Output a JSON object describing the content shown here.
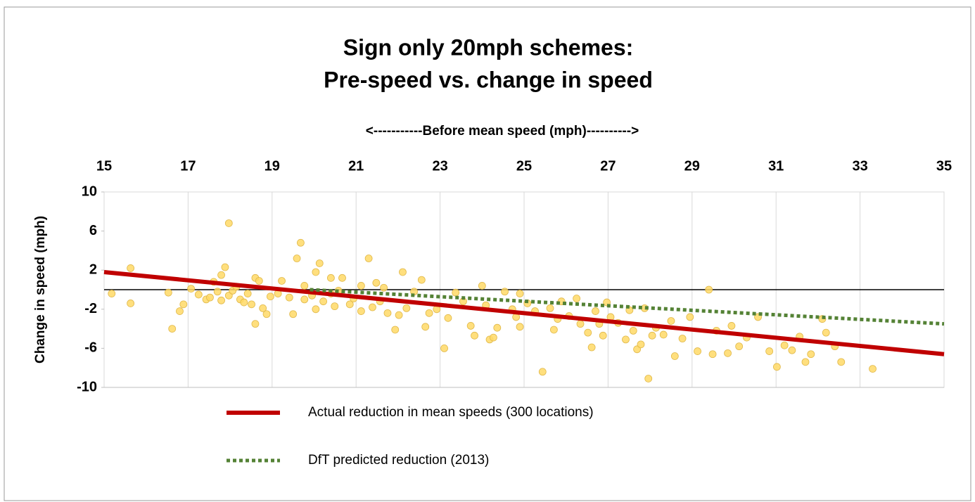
{
  "chart_data": {
    "type": "scatter",
    "title": [
      "Sign only 20mph schemes:",
      "Pre-speed vs. change in speed"
    ],
    "x_label": "<-----------Before mean speed (mph)---------->",
    "y_label": "Change in speed (mph)",
    "xlim": [
      15,
      35
    ],
    "xticks": [
      15,
      17,
      19,
      21,
      23,
      25,
      27,
      29,
      31,
      33,
      35
    ],
    "ylim": [
      -10,
      10
    ],
    "yticks": [
      10,
      6,
      2,
      -2,
      -6,
      -10
    ],
    "grid": true,
    "hline": 0,
    "legend": "bottom",
    "points": {
      "color": "#ffd966",
      "x": [
        15.18,
        15.63,
        15.63,
        16.53,
        16.62,
        16.8,
        16.89,
        17.07,
        17.25,
        17.43,
        17.52,
        17.61,
        17.7,
        17.79,
        17.79,
        17.88,
        17.97,
        17.97,
        18.06,
        18.15,
        18.24,
        18.33,
        18.42,
        18.51,
        18.6,
        18.6,
        18.69,
        18.78,
        18.87,
        18.96,
        19.14,
        19.23,
        19.41,
        19.5,
        19.59,
        19.68,
        19.77,
        19.77,
        19.95,
        20.04,
        20.04,
        20.13,
        20.22,
        20.4,
        20.4,
        20.49,
        20.58,
        20.67,
        20.85,
        20.94,
        21.12,
        21.12,
        21.3,
        21.39,
        21.48,
        21.57,
        21.66,
        21.75,
        21.93,
        22.02,
        22.11,
        22.2,
        22.38,
        22.56,
        22.65,
        22.74,
        22.92,
        23.1,
        23.19,
        23.37,
        23.55,
        23.73,
        23.82,
        24.0,
        24.09,
        24.18,
        24.27,
        24.36,
        24.54,
        24.72,
        24.81,
        24.9,
        24.9,
        25.08,
        25.26,
        25.44,
        25.62,
        25.71,
        25.8,
        25.89,
        26.07,
        26.25,
        26.34,
        26.52,
        26.61,
        26.7,
        26.79,
        26.88,
        26.97,
        27.06,
        27.24,
        27.42,
        27.51,
        27.6,
        27.69,
        27.78,
        27.87,
        27.96,
        28.05,
        28.14,
        28.32,
        28.5,
        28.59,
        28.77,
        28.95,
        29.13,
        29.4,
        29.49,
        29.58,
        29.85,
        29.94,
        30.12,
        30.3,
        30.57,
        30.84,
        31.02,
        31.2,
        31.38,
        31.56,
        31.83,
        32.1,
        32.19,
        32.55,
        33.3,
        32.4,
        31.7
      ],
      "values": [
        -0.4,
        2.2,
        -1.4,
        -0.3,
        -4.0,
        -2.2,
        -1.5,
        0.1,
        -0.5,
        -1.0,
        -0.8,
        0.8,
        -0.2,
        1.5,
        -1.1,
        2.3,
        -0.6,
        6.8,
        -0.1,
        0.3,
        -1.0,
        -1.3,
        -0.4,
        -1.5,
        1.2,
        -3.5,
        0.9,
        -1.9,
        -2.5,
        -0.7,
        -0.4,
        0.9,
        -0.8,
        -2.5,
        3.2,
        4.8,
        -1.0,
        0.4,
        -0.6,
        1.8,
        -2.0,
        2.7,
        -1.2,
        -0.4,
        1.2,
        -1.7,
        -0.1,
        1.2,
        -1.5,
        -0.9,
        -2.2,
        0.4,
        3.2,
        -1.8,
        0.7,
        -1.2,
        0.2,
        -2.4,
        -4.1,
        -2.6,
        1.8,
        -1.9,
        -0.2,
        1.0,
        -3.8,
        -2.4,
        -2.0,
        -6.0,
        -2.9,
        -0.3,
        -1.2,
        -3.7,
        -4.7,
        0.4,
        -1.6,
        -5.1,
        -4.9,
        -3.9,
        -0.2,
        -2.0,
        -2.8,
        -3.8,
        -0.4,
        -1.4,
        -2.2,
        -8.4,
        -1.9,
        -4.1,
        -3.0,
        -1.2,
        -2.7,
        -0.9,
        -3.5,
        -4.4,
        -5.9,
        -2.2,
        -3.5,
        -4.7,
        -1.3,
        -2.8,
        -3.4,
        -5.1,
        -2.1,
        -4.2,
        -6.1,
        -5.6,
        -1.9,
        -9.1,
        -4.7,
        -3.9,
        -4.6,
        -3.2,
        -6.8,
        -5.0,
        -2.8,
        -6.3,
        0.0,
        -6.6,
        -4.2,
        -6.5,
        -3.7,
        -5.8,
        -4.9,
        -2.8,
        -6.3,
        -7.9,
        -5.7,
        -6.2,
        -4.8,
        -6.6,
        -3.0,
        -4.4,
        -7.4,
        -8.1,
        -5.8,
        -7.4
      ]
    },
    "series": [
      {
        "name": "Actual reduction in mean speeds (300 locations)",
        "color": "#c00000",
        "style": "solid",
        "x": [
          15,
          35
        ],
        "values": [
          1.8,
          -6.6
        ]
      },
      {
        "name": "DfT predicted reduction (2013)",
        "color": "#548235",
        "style": "dotted",
        "x": [
          19.9,
          35
        ],
        "values": [
          0,
          -3.5
        ]
      }
    ]
  }
}
